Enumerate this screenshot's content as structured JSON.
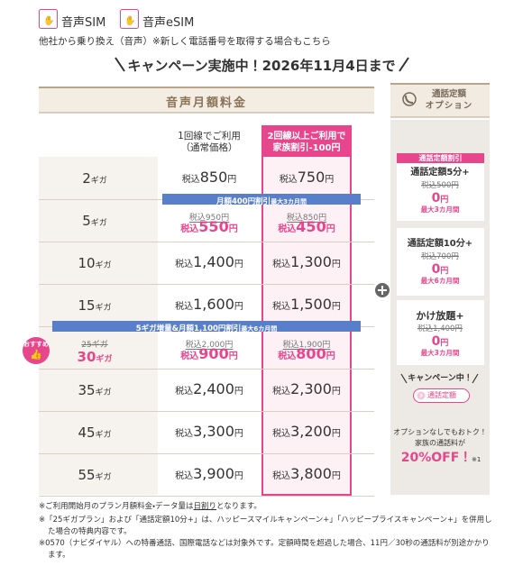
{
  "tabs": [
    {
      "label": "音声SIM"
    },
    {
      "label": "音声eSIM"
    }
  ],
  "note": "他社から乗り換え（音声）※新しく電話番号を取得する場合もこちら",
  "campaign": "キャンペーン実施中！2026年11月4日まで",
  "table": {
    "title": "音声月額料金",
    "col_normal": [
      "1回線でご利用",
      "（通常価格）"
    ],
    "col_family": [
      "2回線以上ご利用で",
      "家族割引-100円"
    ],
    "tax": "税込",
    "yen": "円",
    "giga": "ギガ",
    "rows": [
      {
        "gb": "2",
        "normal": "850",
        "family": "750"
      },
      {
        "gb": "5",
        "banner": {
          "main": "月額400円割引",
          "sub": "最大3カ月間"
        },
        "normal_old": "950",
        "normal": "550",
        "family_old": "850",
        "family": "450"
      },
      {
        "gb": "10",
        "normal": "1,400",
        "family": "1,300"
      },
      {
        "gb": "15",
        "normal": "1,600",
        "family": "1,500"
      },
      {
        "gb_old": "25",
        "gb": "30",
        "badge": "おすすめ",
        "banner": {
          "main": "5ギガ増量&月額1,100円割引",
          "sub": "最大6カ月間"
        },
        "normal_old": "2,000",
        "normal": "900",
        "family_old": "1,900",
        "family": "800"
      },
      {
        "gb": "35",
        "normal": "2,400",
        "family": "2,300"
      },
      {
        "gb": "45",
        "normal": "3,300",
        "family": "3,200"
      },
      {
        "gb": "55",
        "normal": "3,900",
        "family": "3,800"
      }
    ]
  },
  "options": {
    "title": [
      "通話定額",
      "オプション"
    ],
    "tag": "通話定額割引",
    "items": [
      {
        "name": "通話定額5分+",
        "old": "500",
        "free": "0",
        "period": "最大3カ月間"
      },
      {
        "name": "通話定額10分+",
        "old": "700",
        "free": "0",
        "period": "最大6カ月間"
      },
      {
        "name": "かけ放題+",
        "old": "1,400",
        "free": "0",
        "period": "最大3カ月間"
      }
    ],
    "campaign": "キャンペーン中！",
    "button": "通話定額",
    "promo": [
      "オプションなしでもおトク！",
      "家族の通話料が"
    ],
    "discount": "20%OFF！",
    "note_ref": "※1"
  },
  "footnotes": [
    [
      "※ご利用開始月のプラン月額料金・データ量は",
      "日割り",
      "となります。"
    ],
    [
      "※「25ギガプラン」および「通話定額10分+」は、ハッピースマイルキャンペーン+」「ハッピープライスキャンペーン+」を併用した場合の特典内容です。"
    ],
    [
      "※0570（ナビダイヤル）への特番通話、国際電話などは対象外です。定額時間を超過した場合、11円／30秒の通話料が別途かかります。"
    ]
  ]
}
